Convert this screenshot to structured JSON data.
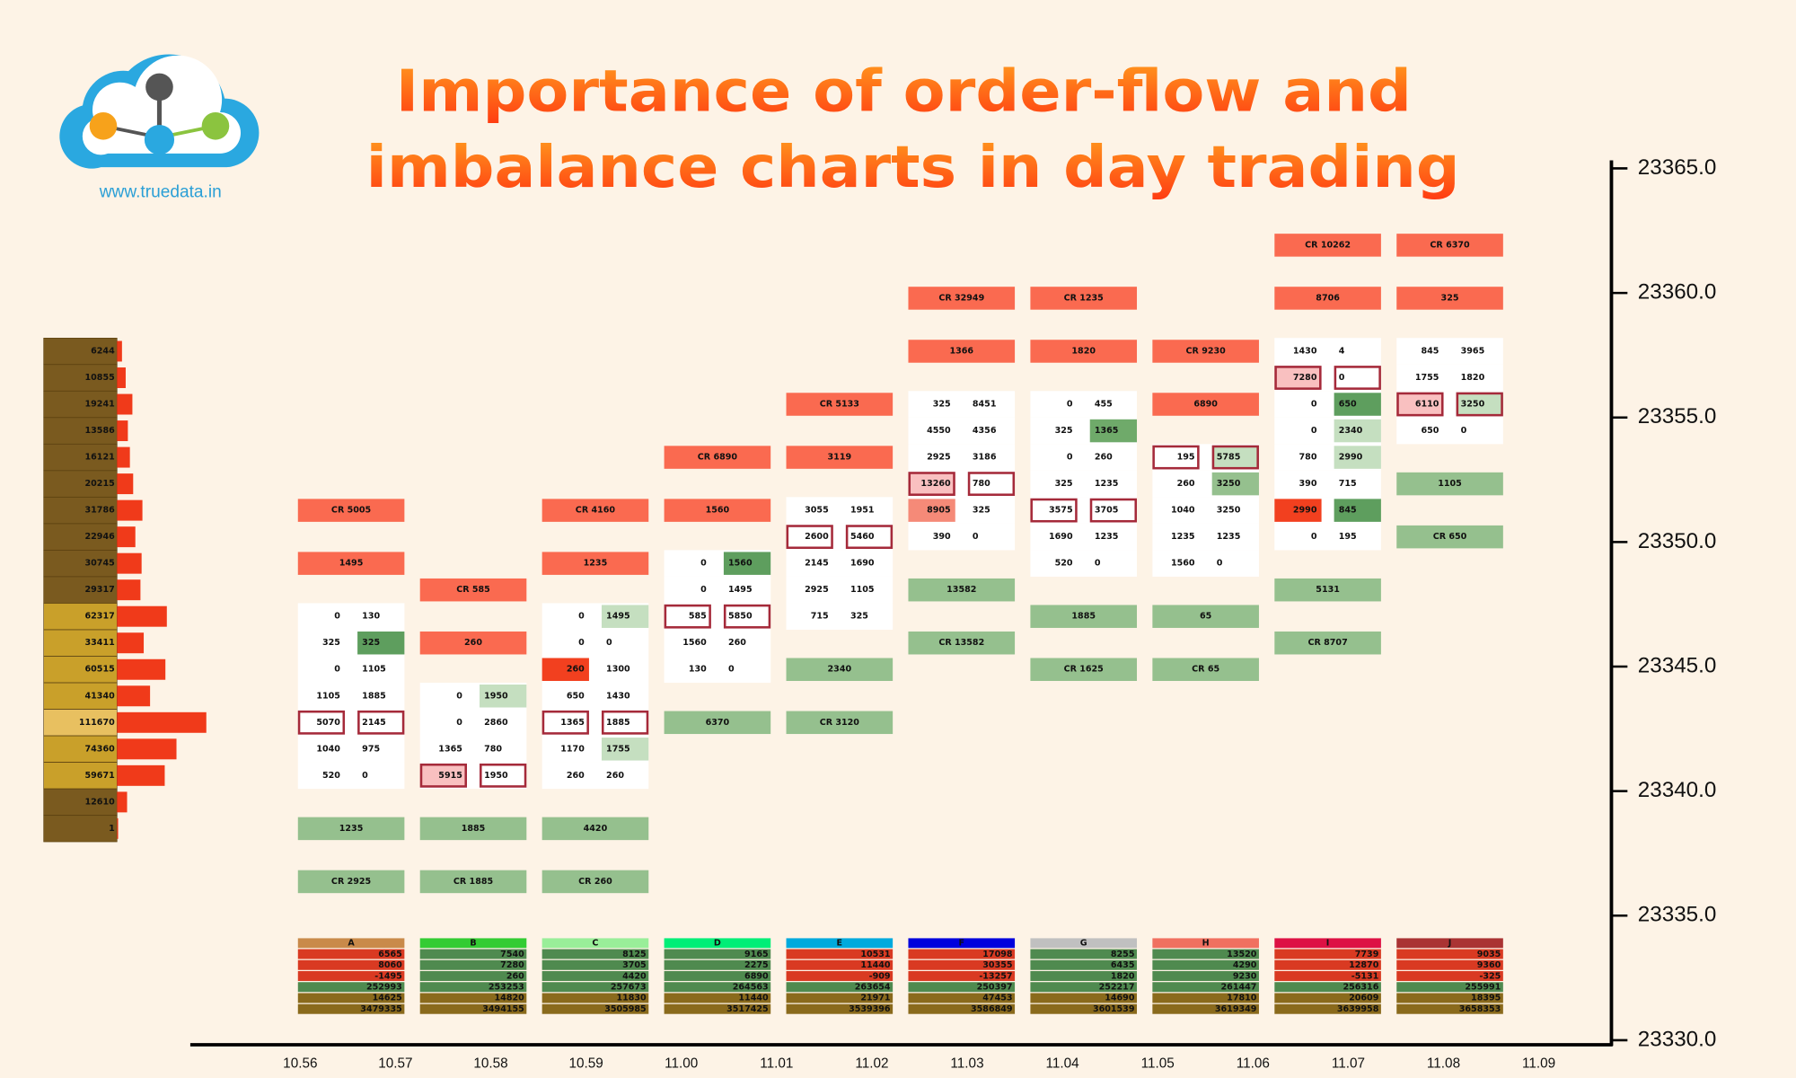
{
  "header": {
    "title_lines": [
      "Importance of order-flow and",
      "imbalance charts in day trading"
    ],
    "website": "www.truedata.in"
  },
  "chart_data": {
    "type": "footprint",
    "ylim": [
      23330,
      23365
    ],
    "yticks": [
      {
        "value": 23330,
        "label": "23330.0"
      },
      {
        "value": 23335,
        "label": "23335.0"
      },
      {
        "value": 23340,
        "label": "23340.0"
      },
      {
        "value": 23345,
        "label": "23345.0"
      },
      {
        "value": 23350,
        "label": "23350.0"
      },
      {
        "value": 23355,
        "label": "23355.0"
      },
      {
        "value": 23360,
        "label": "23360.0"
      },
      {
        "value": 23365,
        "label": "23365.0"
      }
    ],
    "categories": [
      "10.56",
      "10.57",
      "10.58",
      "10.59",
      "11.00",
      "11.01",
      "11.02",
      "11.03",
      "11.04",
      "11.05",
      "11.06",
      "11.07",
      "11.08",
      "11.09"
    ],
    "volume_profile": [
      6244,
      10855,
      19241,
      13586,
      16121,
      20215,
      31786,
      22946,
      30745,
      29317,
      62317,
      33411,
      60515,
      41340,
      111670,
      74360,
      59671,
      12610,
      1
    ],
    "columns": [
      {
        "name": "A",
        "color": "#c98a4a",
        "blocks": [
          {
            "label": "CR 5005",
            "color": "#fa6a50"
          },
          {
            "label": 1495,
            "color": "#fa6a50"
          },
          {
            "bid": 0,
            "ask": 130
          },
          {
            "bid": 325,
            "ask": 325,
            "ask_fill": "#5e9e5e"
          },
          {
            "bid": 0,
            "ask": 1105
          },
          {
            "bid": 1105,
            "ask": 1885
          },
          {
            "bid": 5070,
            "ask": 2145,
            "imbalance": true
          },
          {
            "bid": 1040,
            "ask": 975
          },
          {
            "bid": 520,
            "ask": 0
          },
          {
            "label": 1235,
            "color": "#95c08e"
          },
          {
            "label": "CR 2925",
            "color": "#95c08e"
          }
        ],
        "stats": [
          6565,
          8060,
          -1495,
          252993,
          14625,
          3479335
        ]
      },
      {
        "name": "B",
        "color": "#33cc33",
        "blocks": [
          {
            "label": "CR 585",
            "color": "#fa6a50"
          },
          {
            "label": 260,
            "color": "#fa6a50"
          },
          {
            "bid": 0,
            "ask": 1950,
            "ask_fill": "#c5dfc0"
          },
          {
            "bid": 0,
            "ask": 2860
          },
          {
            "bid": 1365,
            "ask": 780
          },
          {
            "bid": 5915,
            "ask": 1950,
            "imbalance": true,
            "bid_fill": "#f9c0c0"
          },
          {
            "label": 1885,
            "color": "#95c08e"
          },
          {
            "label": "CR 1885",
            "color": "#95c08e"
          }
        ],
        "stats": [
          7540,
          7280,
          260,
          253253,
          14820,
          3494155
        ]
      },
      {
        "name": "C",
        "color": "#99ee99",
        "blocks": [
          {
            "label": "CR 4160",
            "color": "#fa6a50"
          },
          {
            "label": 1235,
            "color": "#fa6a50"
          },
          {
            "bid": 0,
            "ask": 1495,
            "ask_fill": "#c5dfc0"
          },
          {
            "bid": 0,
            "ask": 0
          },
          {
            "bid": 260,
            "ask": 1300,
            "bid_fill": "#f2401f"
          },
          {
            "bid": 650,
            "ask": 1430
          },
          {
            "bid": 1365,
            "ask": 1885,
            "imbalance": true
          },
          {
            "bid": 1170,
            "ask": 1755,
            "ask_fill": "#c5dfc0"
          },
          {
            "bid": 260,
            "ask": 260
          },
          {
            "label": 4420,
            "color": "#95c08e"
          },
          {
            "label": "CR 260",
            "color": "#95c08e"
          }
        ],
        "stats": [
          8125,
          3705,
          4420,
          257673,
          11830,
          3505985
        ]
      },
      {
        "name": "D",
        "color": "#00ee77",
        "blocks": [
          {
            "label": "CR 6890",
            "color": "#fa6a50"
          },
          {
            "label": 1560,
            "color": "#fa6a50"
          },
          {
            "bid": 0,
            "ask": 1560,
            "ask_fill": "#5e9e5e"
          },
          {
            "bid": 0,
            "ask": 1495
          },
          {
            "bid": 585,
            "ask": 5850,
            "imbalance": true
          },
          {
            "bid": 1560,
            "ask": 260
          },
          {
            "bid": 130,
            "ask": 0
          },
          {
            "label": 6370,
            "color": "#95c08e"
          }
        ],
        "stats": [
          9165,
          2275,
          6890,
          264563,
          11440,
          3517425
        ]
      },
      {
        "name": "E",
        "color": "#00aadd",
        "blocks": [
          {
            "label": "CR 5133",
            "color": "#fa6a50"
          },
          {
            "label": 3119,
            "color": "#fa6a50"
          },
          {
            "bid": 3055,
            "ask": 1951
          },
          {
            "bid": 2600,
            "ask": 5460,
            "imbalance": true
          },
          {
            "bid": 2145,
            "ask": 1690
          },
          {
            "bid": 2925,
            "ask": 1105
          },
          {
            "bid": 715,
            "ask": 325
          },
          {
            "label": 2340,
            "color": "#95c08e"
          },
          {
            "label": "CR 3120",
            "color": "#95c08e"
          }
        ],
        "stats": [
          10531,
          11440,
          -909,
          263654,
          21971,
          3539396
        ]
      },
      {
        "name": "F",
        "color": "#0000dd",
        "blocks": [
          {
            "label": "CR 32949",
            "color": "#fa6a50"
          },
          {
            "label": 1366,
            "color": "#fa6a50"
          },
          {
            "bid": 325,
            "ask": 8451
          },
          {
            "bid": 4550,
            "ask": 4356
          },
          {
            "bid": 2925,
            "ask": 3186
          },
          {
            "bid": 13260,
            "ask": 780,
            "imbalance": true,
            "bid_fill": "#f9c0c0"
          },
          {
            "bid": 8905,
            "ask": 325,
            "bid_fill": "#f58a78"
          },
          {
            "bid": 390,
            "ask": 0
          },
          {
            "label": 13582,
            "color": "#95c08e"
          },
          {
            "label": "CR 13582",
            "color": "#95c08e"
          }
        ],
        "stats": [
          17098,
          30355,
          -13257,
          250397,
          47453,
          3586849
        ]
      },
      {
        "name": "G",
        "color": "#c0c0c0",
        "blocks": [
          {
            "label": "CR 1235",
            "color": "#fa6a50"
          },
          {
            "label": 1820,
            "color": "#fa6a50"
          },
          {
            "bid": 0,
            "ask": 455
          },
          {
            "bid": 325,
            "ask": 1365,
            "ask_fill": "#6faa6a"
          },
          {
            "bid": 0,
            "ask": 260
          },
          {
            "bid": 325,
            "ask": 1235
          },
          {
            "bid": 3575,
            "ask": 3705,
            "imbalance": true
          },
          {
            "bid": 1690,
            "ask": 1235
          },
          {
            "bid": 520,
            "ask": 0
          },
          {
            "label": 1885,
            "color": "#95c08e"
          },
          {
            "label": "CR 1625",
            "color": "#95c08e"
          }
        ],
        "stats": [
          8255,
          6435,
          1820,
          252217,
          14690,
          3601539
        ]
      },
      {
        "name": "H",
        "color": "#f07060",
        "blocks": [
          {
            "label": "CR 9230",
            "color": "#fa6a50"
          },
          {
            "label": 6890,
            "color": "#fa6a50"
          },
          {
            "bid": 195,
            "ask": 5785,
            "imbalance": true,
            "ask_fill": "#c5dfc0"
          },
          {
            "bid": 260,
            "ask": 3250,
            "ask_fill": "#95c08e"
          },
          {
            "bid": 1040,
            "ask": 3250
          },
          {
            "bid": 1235,
            "ask": 1235
          },
          {
            "bid": 1560,
            "ask": 0
          },
          {
            "label": 65,
            "color": "#95c08e"
          },
          {
            "label": "CR 65",
            "color": "#95c08e"
          }
        ],
        "stats": [
          13520,
          4290,
          9230,
          261447,
          17810,
          3619349
        ]
      },
      {
        "name": "I",
        "color": "#dd1144",
        "blocks": [
          {
            "label": "CR 10262",
            "color": "#fa6a50"
          },
          {
            "label": 8706,
            "color": "#fa6a50"
          },
          {
            "bid": 1430,
            "ask": 4
          },
          {
            "bid": 7280,
            "ask": 0,
            "imbalance": true,
            "bid_fill": "#f9c0c0"
          },
          {
            "bid": 0,
            "ask": 650,
            "ask_fill": "#5e9e5e"
          },
          {
            "bid": 0,
            "ask": 2340,
            "ask_fill": "#c5dfc0"
          },
          {
            "bid": 780,
            "ask": 2990,
            "ask_fill": "#c5dfc0"
          },
          {
            "bid": 390,
            "ask": 715
          },
          {
            "bid": 2990,
            "ask": 845,
            "bid_fill": "#f2401f",
            "ask_fill": "#5e9e5e"
          },
          {
            "bid": 0,
            "ask": 195
          },
          {
            "label": 5131,
            "color": "#95c08e"
          },
          {
            "label": "CR 8707",
            "color": "#95c08e"
          }
        ],
        "stats": [
          7739,
          12870,
          -5131,
          256316,
          20609,
          3639958
        ]
      },
      {
        "name": "J",
        "color": "#aa3333",
        "blocks": [
          {
            "label": "CR 6370",
            "color": "#fa6a50"
          },
          {
            "label": 325,
            "color": "#fa6a50"
          },
          {
            "bid": 845,
            "ask": 3965
          },
          {
            "bid": 1755,
            "ask": 1820
          },
          {
            "bid": 6110,
            "ask": 3250,
            "imbalance": true,
            "bid_fill": "#f9c0c0",
            "ask_fill": "#c5dfc0"
          },
          {
            "bid": 650,
            "ask": 0
          },
          {
            "label": 1105,
            "color": "#95c08e"
          },
          {
            "label": "CR 650",
            "color": "#95c08e"
          }
        ],
        "stats": [
          9035,
          9360,
          -325,
          255991,
          18395,
          3658353
        ]
      }
    ]
  }
}
